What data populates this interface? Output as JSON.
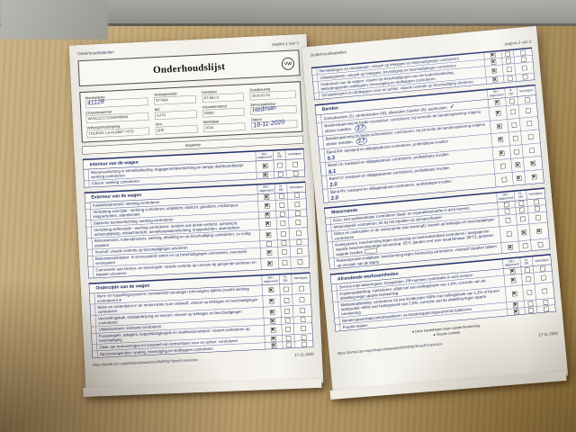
{
  "colors": {
    "paper": "#f4f2ec",
    "print_ink": "#1d2a63",
    "table_border": "#2c3a78",
    "handwriting_pen": "#2a3680",
    "desk_wood": "#ad9060"
  },
  "col_headers": {
    "c1": [
      "OK /",
      "uitgevoerd"
    ],
    "c2": [
      "N.",
      "OK"
    ],
    "c3": [
      "Verholpen",
      ""
    ]
  },
  "page1": {
    "header_small": "Onderhoudstabellen",
    "page_indicator": "pagina 1 van 3",
    "title": "Onderhoudslijst",
    "logo": "VW",
    "info_fields": [
      {
        "label": "Werkordernr.",
        "value": "",
        "hand": "41128"
      },
      {
        "label": "Verkoopmodel",
        "value": "5T7464",
        "hand": ""
      },
      {
        "label": "Kenteken",
        "value": "RT-861-V",
        "hand": ""
      },
      {
        "label": "Goedkeuring",
        "value": "2016-02-01",
        "hand": ""
      },
      {
        "label": "Chassisnummer",
        "value": "WVGZZZ1TZGW049088",
        "hand": ""
      },
      {
        "label": "MC",
        "value": "GJTA",
        "hand": ""
      },
      {
        "label": "Kilometerstand",
        "value": "88881",
        "hand": ""
      },
      {
        "label": "Serviceadviseur",
        "value": "",
        "hand": "Hedman"
      },
      {
        "label": "Verkoopomschrijving",
        "value": "TOURAN 1.6 HL/BMT 74TD",
        "hand": ""
      },
      {
        "label": "VInr.",
        "value": "QJ0",
        "hand": ""
      },
      {
        "label": "Modeljaar",
        "value": "2016",
        "hand": ""
      },
      {
        "label": "Datum",
        "value": "",
        "hand": "18-11-2020"
      }
    ],
    "inspectie_label": "Inspectie",
    "sections": [
      {
        "title": "Interieur van de wagen",
        "rows": [
          {
            "text": "Binnenverlichting in hemelbekleding, bagageruimteverlichting en lampje dashboardkastje: werking controleren",
            "m": [
              1,
              0,
              0
            ]
          },
          {
            "text": "Claxon: werking controleren",
            "m": [
              1,
              0,
              0
            ]
          }
        ]
      },
      {
        "title": "Exterieur van de wagen",
        "rows": [
          {
            "text": "Koplampsproeiers: werking controleren",
            "m": [
              1,
              0,
              0
            ]
          },
          {
            "text": "Verlichting voorzijde - werking controleren: stadslicht, dimlicht, grootlicht, mistlampen, knipperlichten, alarmlichten",
            "m": [
              1,
              0,
              0
            ]
          },
          {
            "text": "Statische bochtverlichting: werking controleren",
            "m": [
              1,
              0,
              0
            ]
          },
          {
            "text": "Verlichting achterzijde - werking controleren: remlicht ook derde remlicht, achterlicht, achteruitrijlamp, mistachterlicht, kentekenplaatverlichting, knipperlichten, alarmlichten",
            "m": [
              1,
              0,
              0
            ]
          },
          {
            "text": "Ruitenwissers, ruitensproeiers: werking, afstelling en op beschadiging controleren, zo nodig afstellen",
            "m": [
              1,
              0,
              0
            ]
          },
          {
            "text": "Voorruit: visuele controle op beschadigingen uitvoeren",
            "m": [
              0,
              0,
              0
            ]
          },
          {
            "text": "Ruitenwisserbladen: in servicestand zetten en op beschadigingen controleren, eventueel vernieuwen",
            "m": [
              1,
              0,
              0
            ]
          },
          {
            "text": "Carrosserie aan binnen- en buitenzijde: visuele controle op corrosie bij geopende portieren en kleppen uitvoeren",
            "m": [
              1,
              0,
              0
            ]
          }
        ]
      },
      {
        "title": "Onderzijde van de wagen",
        "rows": [
          {
            "text": "Rem- en koppelingssysteem: remvloeistof vervangen (Vervolgens tijdens proefrit werking controleren) ●",
            "m": [
              1,
              0,
              0
            ]
          },
          {
            "text": "Motor en onderdelen in de motorruimte (van onderaf): visueel op lekkages en beschadigingen controleren",
            "m": [
              1,
              0,
              0
            ]
          },
          {
            "text": "Versnellingsbak, eindaandrijving en hoezen: visueel op lekkages en beschadigingen controleren",
            "m": [
              1,
              0,
              0
            ]
          },
          {
            "text": "Uitlaatsysteem: toestand controleren",
            "m": [
              1,
              0,
              0
            ]
          },
          {
            "text": "Fuseekogels, aslagers, koppelstangkogels en stabilisatorrubbers: visueel controleren op beschadiging",
            "m": [
              1,
              0,
              0
            ]
          },
          {
            "text": "Dikte van remvoeringen en toestand van remschijven voor en achter: controleren",
            "m": [
              1,
              0,
              0
            ]
          },
          {
            "text": "Spoorstangeinden: speling, bevestiging en stofkappen controleren",
            "m": [
              1,
              0,
              0
            ]
          }
        ]
      }
    ],
    "footer_url": "https://portal.cpn.vwg/elsapro/elsaweb/cll/M3Dlg?IbrazFcmsAction",
    "footer_date": "17-11-2020"
  },
  "page2": {
    "header_small": "Onderhoudstabellen",
    "page_indicator": "pagina 2 van 3",
    "sections": [
      {
        "title": "",
        "rows": [
          {
            "text": "Remleidingen en remslangen: visueel op lekkages en beschadigingen controleren",
            "m": [
              1,
              0,
              0
            ]
          },
          {
            "text": "Uitlaatsysteem: visueel op lekkages, bevestiging en beschadigingen controleren",
            "m": [
              1,
              0,
              0
            ]
          },
          {
            "text": "Onderkant van de wagen: visueel op beschadigingen van de bodembekleding, bekledingsdelen wielkasten: bevestiging en stofkappen controleren",
            "m": [
              1,
              0,
              0
            ]
          },
          {
            "text": "Schokdempers en stofkappen voor en achter: visuele controle op beschadiging uitvoeren",
            "m": [
              1,
              0,
              0
            ]
          }
        ]
      },
      {
        "title": "Banden",
        "rows": [
          {
            "text": "Zomerbanden (Z), winterbanden (W), allweather banden (A): aankruisen",
            "m": [
              1,
              0,
              0
            ],
            "hand": "✓",
            "hstyle": "hand-inline"
          },
          {
            "text": "Bandenspanning bij beide voorwielen: controleren; bij correctie de bandenspanning volgens sticker instellen.",
            "m": [
              1,
              0,
              0
            ],
            "hand": "2.7",
            "hstyle": "hand-circle"
          },
          {
            "text": "Bandenspanning bij beide achterwielen: controleren; bij correctie de bandenspanning volgens sticker instellen.",
            "m": [
              1,
              0,
              0
            ],
            "hand": "2.7",
            "hstyle": "hand-circle"
          },
          {
            "text": "Band RA: toestand en slijtagepatroon controleren, profieldiepte invullen",
            "m": [
              1,
              0,
              0
            ],
            "hand": "5.3",
            "hstyle": "hand-below"
          },
          {
            "text": "Band LA: toestand en slijtagepatroon controleren, profieldiepte invullen",
            "m": [
              1,
              0,
              0
            ],
            "hand": "6.1",
            "hstyle": "hand-below"
          },
          {
            "text": "Band LV: toestand en slijtagepatroon controleren, profieldiepte invullen",
            "m": [
              0,
              1,
              1
            ],
            "hand": "2.0",
            "hstyle": "hand-below"
          },
          {
            "text": "Band RV: toestand en slijtagepatroon controleren, profieldiepte invullen",
            "m": [
              0,
              1,
              1
            ],
            "hand": "2.0",
            "hstyle": "hand-below"
          }
        ]
      },
      {
        "title": "Motorruimte",
        "rows": [
          {
            "text": "Accu: met systeemtester controleren (laad- en reparatiebehoefte in acht nemen)",
            "m": [
              0,
              0,
              0
            ]
          },
          {
            "text": "Motoroliepeil: controleren; let bij het bijvullen op oliespecificatie!",
            "m": [
              0,
              0,
              0
            ]
          },
          {
            "text": "Motor en onderdelen in de motorruimte (van bovenaf): visueel op lekkages en beschadigingen controleren",
            "m": [
              0,
              0,
              0
            ]
          },
          {
            "text": "Koelsysteem: bescherming tegen bevriezing en koelvloeistofpeil controleren / aangegeven waarde bescherming tegen bevriezing -25°C (landen met zeer koud klimaat -36°C); gemeten waarde invullen",
            "m": [
              0,
              1,
              1
            ],
            "box": true
          },
          {
            "text": "Ruitensproeier-installatie: bescherming tegen bevriezing controleren, vloeistof bijvullen (alleen op verzoek van de klant)",
            "m": [
              1,
              0,
              0
            ]
          }
        ]
      },
      {
        "title": "Afrondende werkzaamheden",
        "rows": [
          {
            "text": "Service-intervalweergave: terugzetten; PR-nummer combinatie in acht nemen!",
            "m": [
              1,
              0,
              0
            ]
          },
          {
            "text": "Koplampafstelling: controleren; altijd met een hellingshoek van 1,0%; correctie van de afstelling tegen aparte berekening.",
            "m": [
              1,
              0,
              0
            ]
          },
          {
            "text": "Mistlampafstelling: controleren bij een lichtbundel <80% met hellingshoek van 1,2% of bij een lichtbundel >80% met hellingshoek van 2,0%; correctie van de afstelling tegen aparte berekening.",
            "m": [
              1,
              0,
              0
            ]
          },
          {
            "text": "Bandenspanningscontrolesysteem: na bandenspanningscorrectie kalibreren",
            "m": [
              1,
              0,
              0
            ]
          },
          {
            "text": "Proefrit maken",
            "m": [
              1,
              0,
              0
            ]
          }
        ]
      }
    ],
    "footnotes": [
      "●  Deze handelingen tegen aparte berekening.",
      "●  Visuele controle"
    ],
    "footer_url": "https://portal.cpn.vwg/elsapro/elsaweb/cll/M3Dlg?IbrazFcmsAction",
    "footer_date": "17-11-2020"
  }
}
